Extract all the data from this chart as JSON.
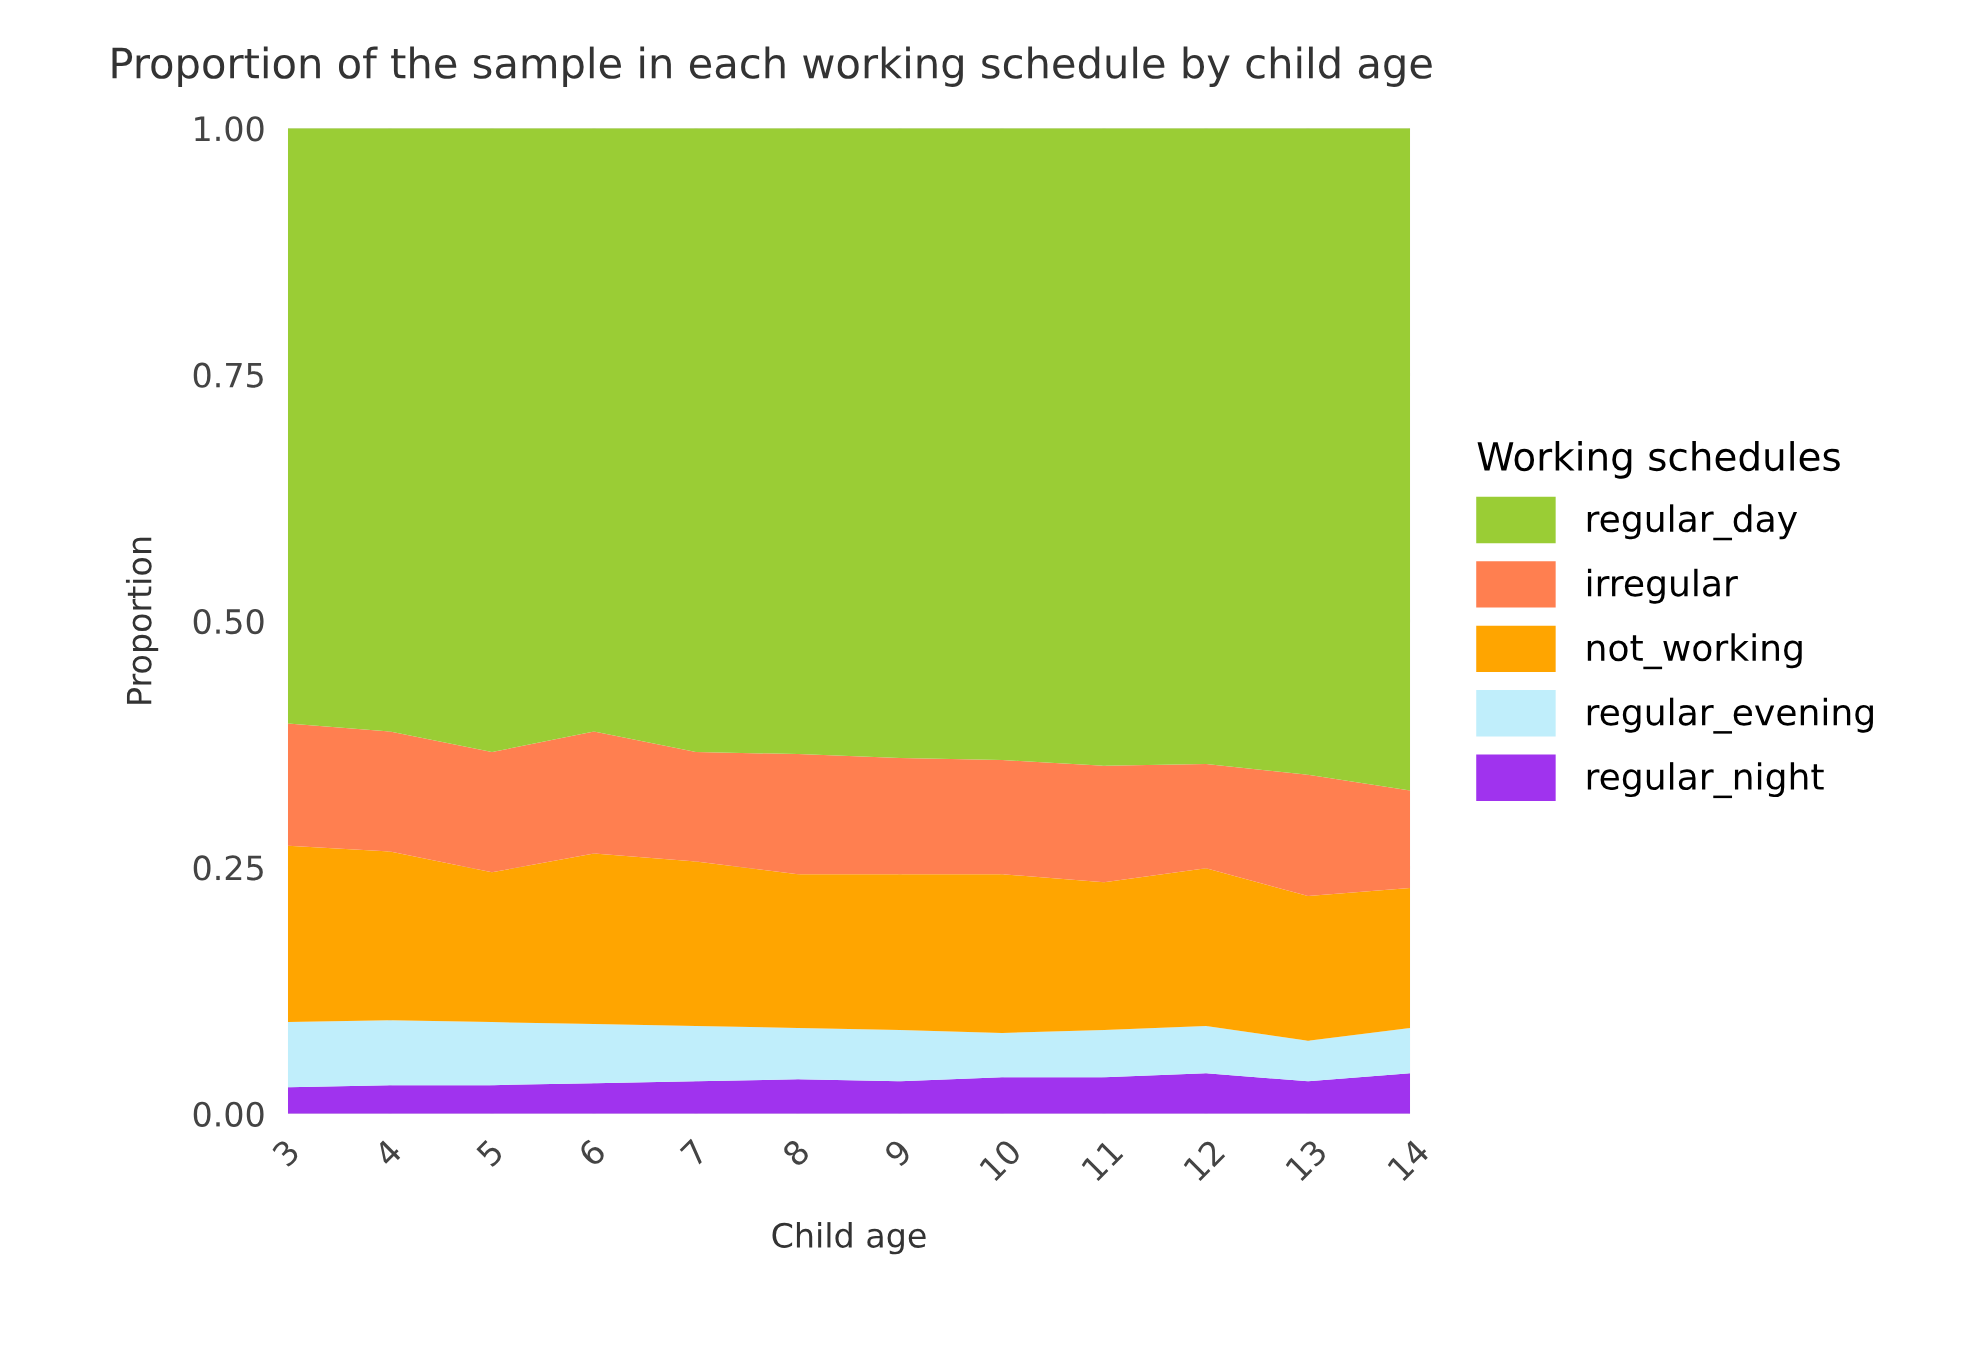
{
  "chart_data": {
    "type": "area",
    "stacked": true,
    "title": "Proportion of the sample in each working schedule by child age",
    "xlabel": "Child age",
    "ylabel": "Proportion",
    "legend_title": "Working schedules",
    "legend": "right",
    "grid": true,
    "x": [
      3,
      4,
      5,
      6,
      7,
      8,
      9,
      10,
      11,
      12,
      13,
      14
    ],
    "xlim": [
      3,
      14
    ],
    "xticks": [
      3,
      4,
      5,
      6,
      7,
      8,
      9,
      10,
      11,
      12,
      13,
      14
    ],
    "ylim": [
      0,
      1
    ],
    "yticks": [
      {
        "value": 0,
        "label": "0.00"
      },
      {
        "value": 0.25,
        "label": "0.25"
      },
      {
        "value": 0.5,
        "label": "0.50"
      },
      {
        "value": 0.75,
        "label": "0.75"
      },
      {
        "value": 1,
        "label": "1.00"
      }
    ],
    "series": [
      {
        "name": "regular_night",
        "color": "#a033ee",
        "values": [
          0.027,
          0.029,
          0.029,
          0.031,
          0.033,
          0.035,
          0.033,
          0.037,
          0.037,
          0.041,
          0.033,
          0.041
        ]
      },
      {
        "name": "regular_evening",
        "color": "#c0eefb",
        "values": [
          0.066,
          0.066,
          0.064,
          0.06,
          0.056,
          0.052,
          0.052,
          0.045,
          0.048,
          0.048,
          0.041,
          0.046
        ]
      },
      {
        "name": "not_working",
        "color": "#ffa500",
        "values": [
          0.179,
          0.171,
          0.152,
          0.173,
          0.167,
          0.156,
          0.158,
          0.161,
          0.15,
          0.16,
          0.147,
          0.142
        ]
      },
      {
        "name": "irregular",
        "color": "#ff7f50",
        "values": [
          0.124,
          0.122,
          0.122,
          0.124,
          0.111,
          0.122,
          0.118,
          0.116,
          0.118,
          0.106,
          0.123,
          0.099
        ]
      },
      {
        "name": "regular_day",
        "color": "#9acd35",
        "values": [
          0.604,
          0.612,
          0.633,
          0.612,
          0.633,
          0.635,
          0.639,
          0.641,
          0.647,
          0.645,
          0.656,
          0.672
        ]
      }
    ]
  }
}
